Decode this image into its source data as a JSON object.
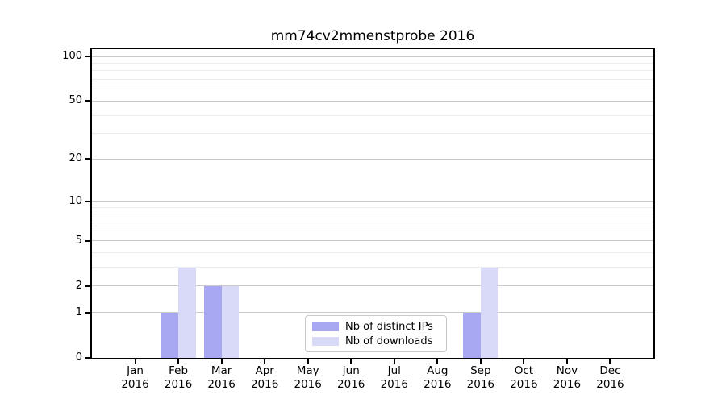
{
  "title": "mm74cv2mmenstprobe 2016",
  "colors": {
    "background": "#ffffff",
    "axis": "#000000",
    "grid_major": "#c9c9c9",
    "grid_minor": "#ececec",
    "series_distinct_ips": "#a8a8f2",
    "series_downloads": "#d9d9f8",
    "legend_border": "#c9c9c9"
  },
  "chart_data": {
    "type": "bar",
    "title": "mm74cv2mmenstprobe 2016",
    "x_categories": [
      "Jan",
      "Feb",
      "Mar",
      "Apr",
      "May",
      "Jun",
      "Jul",
      "Aug",
      "Sep",
      "Oct",
      "Nov",
      "Dec"
    ],
    "x_year_label": "2016",
    "series": [
      {
        "name": "Nb of distinct IPs",
        "color": "#a8a8f2",
        "values": [
          0,
          1,
          2,
          0,
          0,
          0,
          0,
          0,
          1,
          0,
          0,
          0
        ]
      },
      {
        "name": "Nb of downloads",
        "color": "#d9d9f8",
        "values": [
          0,
          3,
          2,
          0,
          0,
          0,
          0,
          0,
          3,
          0,
          0,
          0
        ]
      }
    ],
    "y_scale": "log1p",
    "ylim": [
      0,
      112
    ],
    "y_major_ticks": [
      0,
      1,
      2,
      5,
      10,
      20,
      50,
      100
    ],
    "y_gridline_ticks": [
      1,
      2,
      5,
      10,
      20,
      50,
      100
    ],
    "y_minor_gridline_ticks": [
      3,
      4,
      6,
      7,
      8,
      9,
      30,
      40,
      60,
      70,
      80,
      90
    ],
    "grid": "horizontal-only",
    "legend_position": "lower-center",
    "legend_items": [
      "Nb of distinct IPs",
      "Nb of downloads"
    ]
  }
}
